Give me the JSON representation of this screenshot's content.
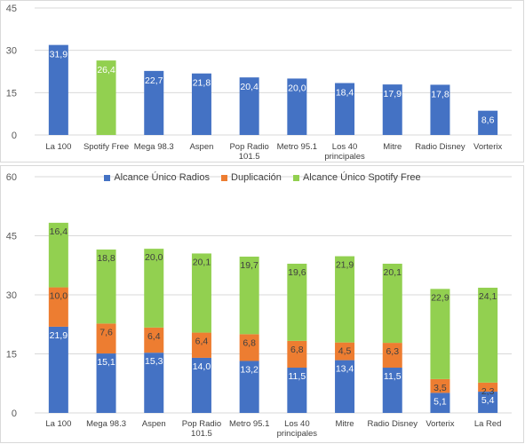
{
  "colors": {
    "radios": "#4472C4",
    "spotify": "#92D050",
    "duplicacion": "#ED7D31",
    "grid": "#d9d9d9"
  },
  "chart_data": [
    {
      "type": "bar",
      "categories": [
        "La 100",
        "Spotify Free",
        "Mega 98.3",
        "Aspen",
        "Pop Radio 101.5",
        "Metro 95.1",
        "Los 40 principales",
        "Mitre",
        "Radio Disney",
        "Vorterix"
      ],
      "values": [
        31.9,
        26.4,
        22.7,
        21.8,
        20.4,
        20.0,
        18.4,
        17.9,
        17.8,
        8.6
      ],
      "value_labels": [
        "31,9",
        "26,4",
        "22,7",
        "21,8",
        "20,4",
        "20,0",
        "18,4",
        "17,9",
        "17,8",
        "8,6"
      ],
      "bar_colors": [
        "radios",
        "spotify",
        "radios",
        "radios",
        "radios",
        "radios",
        "radios",
        "radios",
        "radios",
        "radios"
      ],
      "ylim": [
        0,
        45
      ],
      "yticks": [
        "0",
        "15",
        "30",
        "45"
      ],
      "grid": true
    },
    {
      "type": "bar",
      "stacked": true,
      "categories": [
        "La 100",
        "Mega 98.3",
        "Aspen",
        "Pop Radio 101.5",
        "Metro 95.1",
        "Los 40 principales",
        "Mitre",
        "Radio Disney",
        "Vorterix",
        "La Red"
      ],
      "series": [
        {
          "name": "Alcance Único Radios",
          "color": "radios",
          "values": [
            21.9,
            15.1,
            15.3,
            14.0,
            13.2,
            11.5,
            13.4,
            11.5,
            5.1,
            5.4
          ],
          "labels": [
            "21,9",
            "15,1",
            "15,3",
            "14,0",
            "13,2",
            "11,5",
            "13,4",
            "11,5",
            "5,1",
            "5,4"
          ]
        },
        {
          "name": "Duplicación",
          "color": "duplicacion",
          "values": [
            10.0,
            7.6,
            6.4,
            6.4,
            6.8,
            6.8,
            4.5,
            6.3,
            3.5,
            2.3
          ],
          "labels": [
            "10,0",
            "7,6",
            "6,4",
            "6,4",
            "6,8",
            "6,8",
            "4,5",
            "6,3",
            "3,5",
            "2,3"
          ]
        },
        {
          "name": "Alcance Único Spotify Free",
          "color": "spotify",
          "values": [
            16.4,
            18.8,
            20.0,
            20.1,
            19.7,
            19.6,
            21.9,
            20.1,
            22.9,
            24.1
          ],
          "labels": [
            "16,4",
            "18,8",
            "20,0",
            "20,1",
            "19,7",
            "19,6",
            "21,9",
            "20,1",
            "22,9",
            "24,1"
          ]
        }
      ],
      "ylim": [
        0,
        60
      ],
      "yticks": [
        "0",
        "15",
        "30",
        "45",
        "60"
      ],
      "legend": "top-center",
      "grid": true
    }
  ]
}
